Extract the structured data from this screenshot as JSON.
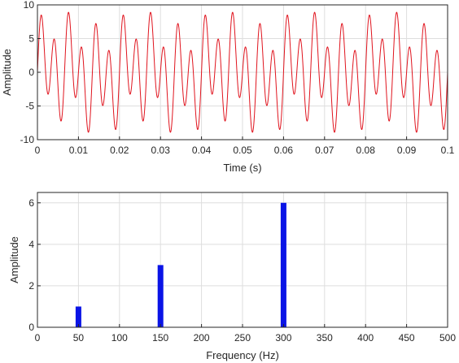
{
  "chart_data": [
    {
      "type": "line",
      "title": "",
      "xlabel": "Time (s)",
      "ylabel": "Amplitude",
      "xlim": [
        0,
        0.1
      ],
      "ylim": [
        -10,
        10
      ],
      "grid": true,
      "xticks": [
        0,
        0.01,
        0.02,
        0.03,
        0.04,
        0.05,
        0.06,
        0.07,
        0.08,
        0.09,
        0.1
      ],
      "yticks": [
        -10,
        -5,
        0,
        5,
        10
      ],
      "series": [
        {
          "color": "#e0141e",
          "expression": "1*sin(2*pi*50*t) + 3*sin(2*pi*150*t) + 6*sin(2*pi*300*t)",
          "components": [
            {
              "frequency_hz": 50,
              "amplitude": 1
            },
            {
              "frequency_hz": 150,
              "amplitude": 3
            },
            {
              "frequency_hz": 300,
              "amplitude": 6
            }
          ]
        }
      ]
    },
    {
      "type": "bar",
      "title": "",
      "xlabel": "Frequency (Hz)",
      "ylabel": "Amplitude",
      "xlim": [
        0,
        500
      ],
      "ylim": [
        0,
        6.5
      ],
      "grid": true,
      "xticks": [
        0,
        50,
        100,
        150,
        200,
        250,
        300,
        350,
        400,
        450,
        500
      ],
      "yticks": [
        0,
        2,
        4,
        6
      ],
      "x": [
        50,
        150,
        300
      ],
      "values": [
        1,
        3,
        6
      ],
      "color": "#0a14e6"
    }
  ]
}
